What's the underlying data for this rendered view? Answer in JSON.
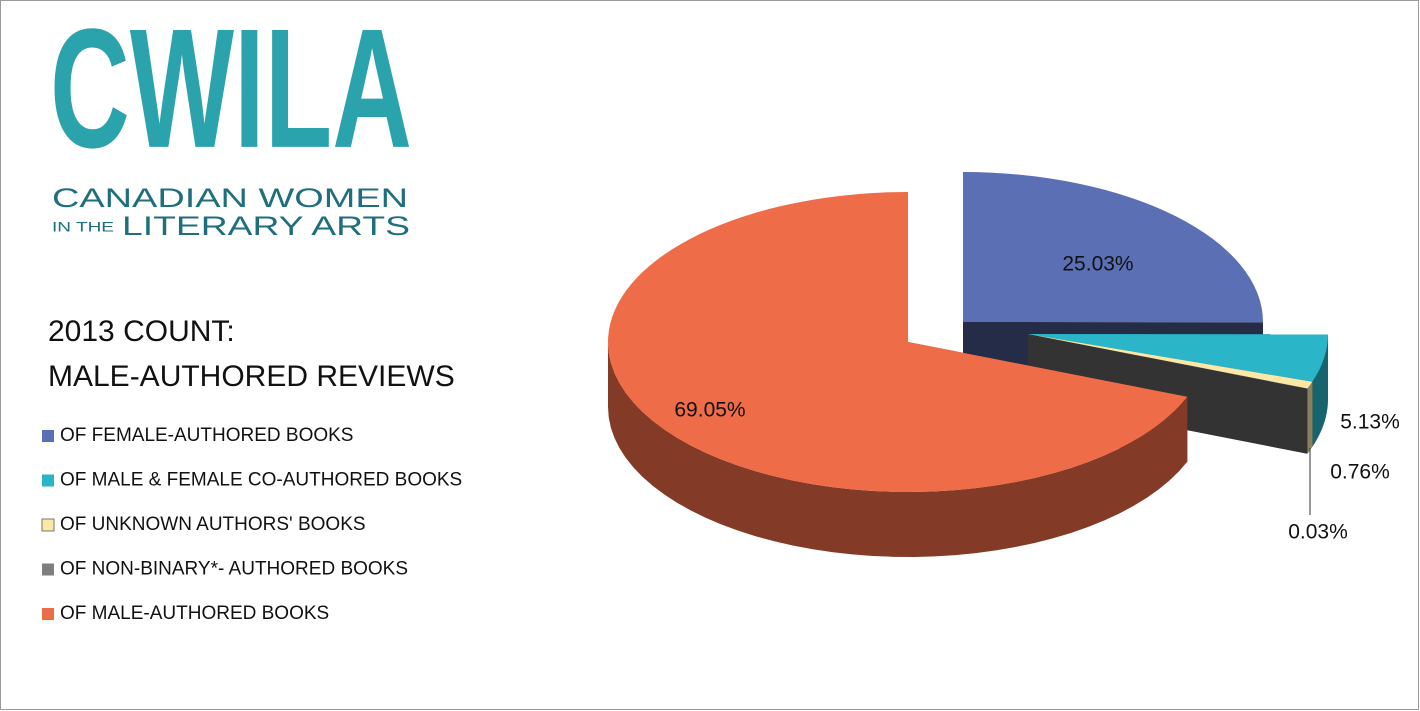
{
  "logo": {
    "name": "CWILA",
    "line1": "CANADIAN WOMEN",
    "prefix": "IN THE",
    "line2": "LITERARY ARTS"
  },
  "chart_data": {
    "type": "pie",
    "title": "2013 COUNT:",
    "subtitle": "MALE-AUTHORED REVIEWS",
    "categories": [
      "OF FEMALE-AUTHORED BOOKS",
      "OF MALE & FEMALE CO-AUTHORED BOOKS",
      "OF UNKNOWN AUTHORS' BOOKS",
      "OF NON-BINARY*- AUTHORED BOOKS",
      "OF MALE-AUTHORED BOOKS"
    ],
    "values": [
      25.03,
      5.13,
      0.76,
      0.03,
      69.05
    ],
    "value_labels": [
      "25.03%",
      "5.13%",
      "0.76%",
      "0.03%",
      "69.05%"
    ],
    "colors": [
      "#5b6fb5",
      "#2ab5c8",
      "#fbe8a6",
      "#7f7f7f",
      "#ee6c47"
    ],
    "legend": "left"
  }
}
